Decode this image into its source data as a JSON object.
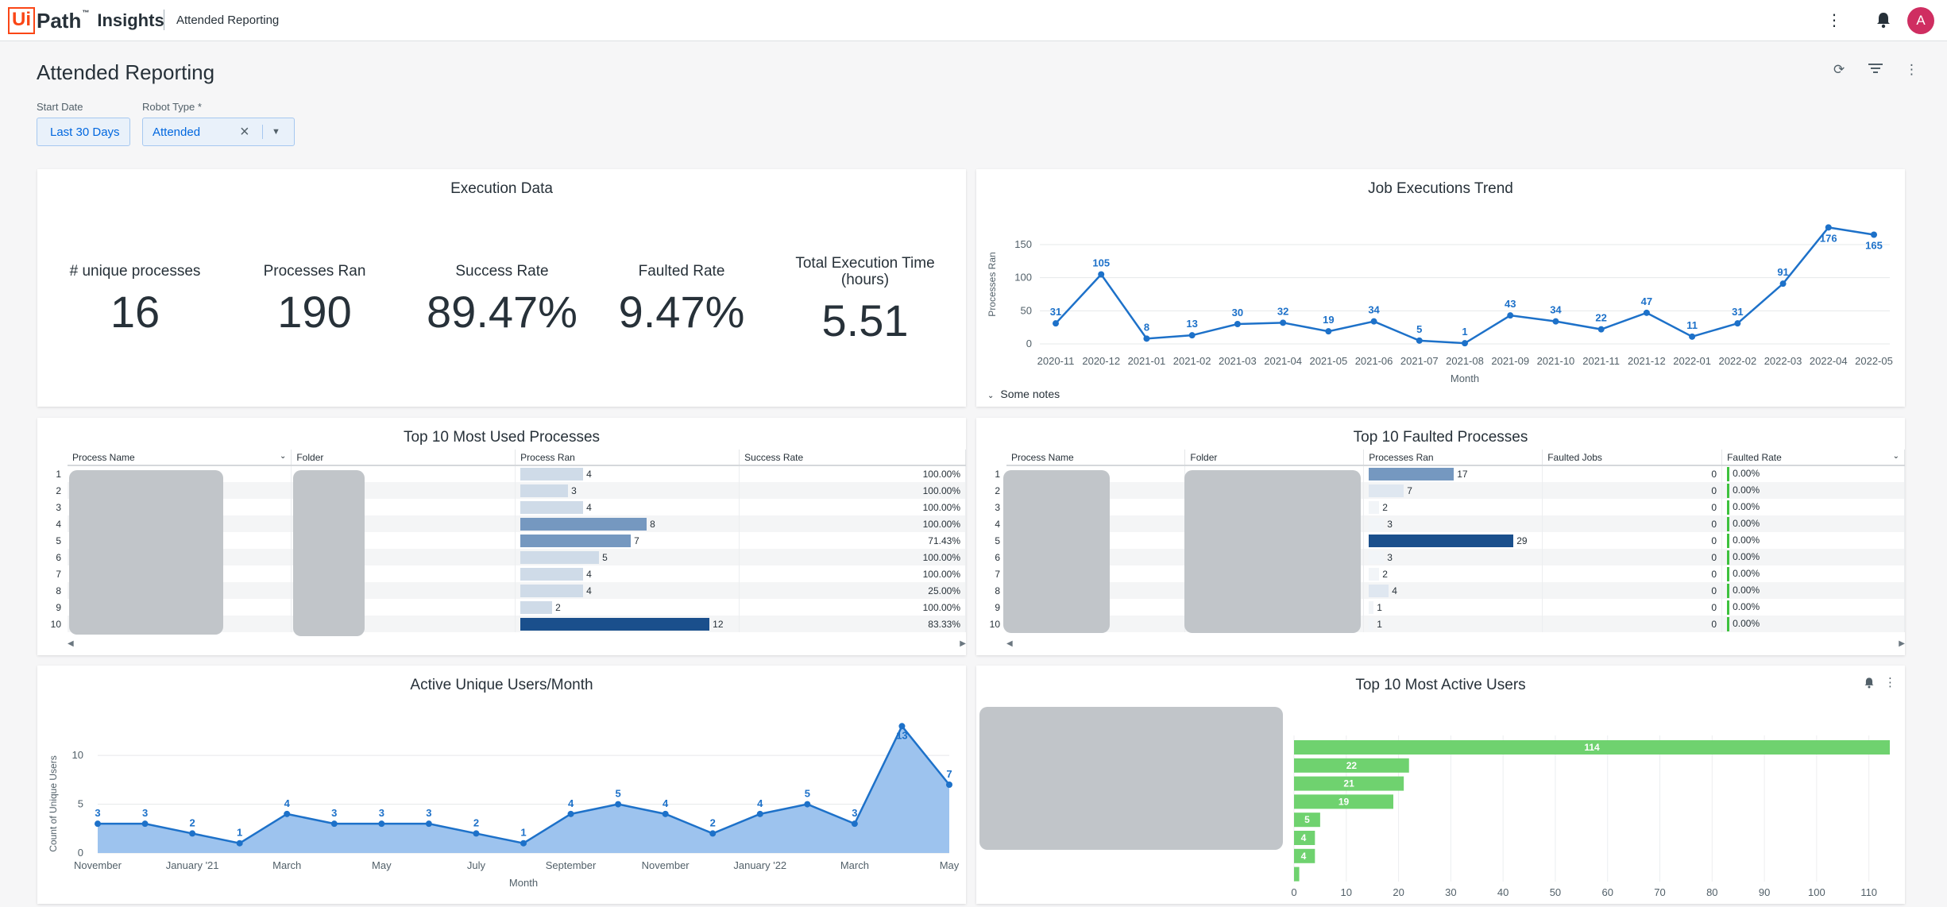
{
  "header": {
    "logo_box": "Ui",
    "logo_path": "Path",
    "logo_tm": "™",
    "logo_product": "Insights",
    "title": "Attended Reporting",
    "avatar": "A"
  },
  "page": {
    "title": "Attended Reporting"
  },
  "filters": {
    "start_label": "Start Date",
    "start_value": "Last 30 Days",
    "robot_label": "Robot Type *",
    "robot_value": "Attended"
  },
  "execution": {
    "title": "Execution Data",
    "kpis": [
      {
        "label": "# unique processes",
        "value": "16"
      },
      {
        "label": "Processes Ran",
        "value": "190"
      },
      {
        "label": "Success Rate",
        "value": "89.47%"
      },
      {
        "label": "Faulted Rate",
        "value": "9.47%"
      },
      {
        "label": "Total Execution Time (hours)",
        "value": "5.51"
      }
    ]
  },
  "trend": {
    "title": "Job Executions Trend",
    "notes": "Some notes",
    "chart_data": {
      "type": "line",
      "x": [
        "2020-11",
        "2020-12",
        "2021-01",
        "2021-02",
        "2021-03",
        "2021-04",
        "2021-05",
        "2021-06",
        "2021-07",
        "2021-08",
        "2021-09",
        "2021-10",
        "2021-11",
        "2021-12",
        "2022-01",
        "2022-02",
        "2022-03",
        "2022-04",
        "2022-05"
      ],
      "values": [
        31,
        105,
        8,
        13,
        30,
        32,
        19,
        34,
        5,
        1,
        43,
        34,
        22,
        47,
        11,
        31,
        91,
        176,
        165
      ],
      "xlabel": "Month",
      "ylabel": "Processes Ran",
      "yticks": [
        "0",
        "50",
        "100",
        "150"
      ],
      "ylim": [
        0,
        180
      ],
      "color": "#1d71c9"
    }
  },
  "used": {
    "title": "Top 10 Most Used Processes",
    "columns": [
      "Process Name",
      "Folder",
      "Process Ran",
      "Success Rate"
    ],
    "rows": [
      {
        "n": "1",
        "ran": "4",
        "v": 4,
        "rate": "100.00%"
      },
      {
        "n": "2",
        "ran": "3",
        "v": 3,
        "rate": "100.00%"
      },
      {
        "n": "3",
        "ran": "4",
        "v": 4,
        "rate": "100.00%"
      },
      {
        "n": "4",
        "ran": "8",
        "v": 8,
        "rate": "100.00%"
      },
      {
        "n": "5",
        "ran": "7",
        "v": 7,
        "rate": "71.43%"
      },
      {
        "n": "6",
        "ran": "5",
        "v": 5,
        "rate": "100.00%"
      },
      {
        "n": "7",
        "ran": "4",
        "v": 4,
        "rate": "100.00%"
      },
      {
        "n": "8",
        "ran": "4",
        "v": 4,
        "rate": "25.00%"
      },
      {
        "n": "9",
        "ran": "2",
        "v": 2,
        "rate": "100.00%"
      },
      {
        "n": "10",
        "ran": "12",
        "v": 12,
        "rate": "83.33%"
      }
    ]
  },
  "faulted": {
    "title": "Top 10 Faulted Processes",
    "columns": [
      "Process Name",
      "Folder",
      "Processes Ran",
      "Faulted Jobs",
      "Faulted Rate"
    ],
    "rows": [
      {
        "n": "1",
        "ran": "17",
        "v": 17,
        "jobs": "0",
        "rate": "0.00%"
      },
      {
        "n": "2",
        "ran": "7",
        "v": 7,
        "jobs": "0",
        "rate": "0.00%"
      },
      {
        "n": "3",
        "ran": "2",
        "v": 2,
        "jobs": "0",
        "rate": "0.00%"
      },
      {
        "n": "4",
        "ran": "3",
        "v": 3,
        "jobs": "0",
        "rate": "0.00%"
      },
      {
        "n": "5",
        "ran": "29",
        "v": 29,
        "jobs": "0",
        "rate": "0.00%"
      },
      {
        "n": "6",
        "ran": "3",
        "v": 3,
        "jobs": "0",
        "rate": "0.00%"
      },
      {
        "n": "7",
        "ran": "2",
        "v": 2,
        "jobs": "0",
        "rate": "0.00%"
      },
      {
        "n": "8",
        "ran": "4",
        "v": 4,
        "jobs": "0",
        "rate": "0.00%"
      },
      {
        "n": "9",
        "ran": "1",
        "v": 1,
        "jobs": "0",
        "rate": "0.00%"
      },
      {
        "n": "10",
        "ran": "1",
        "v": 1,
        "jobs": "0",
        "rate": "0.00%"
      }
    ]
  },
  "users_month": {
    "title": "Active Unique Users/Month",
    "chart_data": {
      "type": "area",
      "values": [
        3,
        3,
        2,
        1,
        4,
        3,
        3,
        3,
        2,
        1,
        4,
        5,
        4,
        2,
        4,
        5,
        3,
        13,
        7
      ],
      "value_labels": [
        "3",
        "3",
        "2",
        "1",
        "4",
        "3",
        "3",
        "3",
        "2",
        "1",
        "4",
        "5",
        "4",
        "2",
        "4",
        "5",
        "3",
        "13",
        "7"
      ],
      "xticks": [
        "November",
        "January '21",
        "March",
        "May",
        "July",
        "September",
        "November",
        "January '22",
        "March",
        "May"
      ],
      "xlabel": "Month",
      "ylabel": "Count of Unique Users",
      "yticks": [
        "0",
        "5",
        "10"
      ],
      "ylim": [
        0,
        14
      ],
      "color": "#1d71c9"
    }
  },
  "active_users": {
    "title": "Top 10 Most Active Users",
    "chart_data": {
      "type": "bar",
      "values": [
        114,
        22,
        21,
        19,
        5,
        4,
        4,
        1
      ],
      "labels": [
        "114",
        "22",
        "21",
        "19",
        "5",
        "4",
        "4",
        "1"
      ],
      "xticks": [
        "0",
        "10",
        "20",
        "30",
        "40",
        "50",
        "60",
        "70",
        "80",
        "90",
        "100",
        "110"
      ],
      "xlabel": "Processes Ran",
      "xlim": [
        0,
        114
      ],
      "color": "#6fd26f"
    }
  }
}
